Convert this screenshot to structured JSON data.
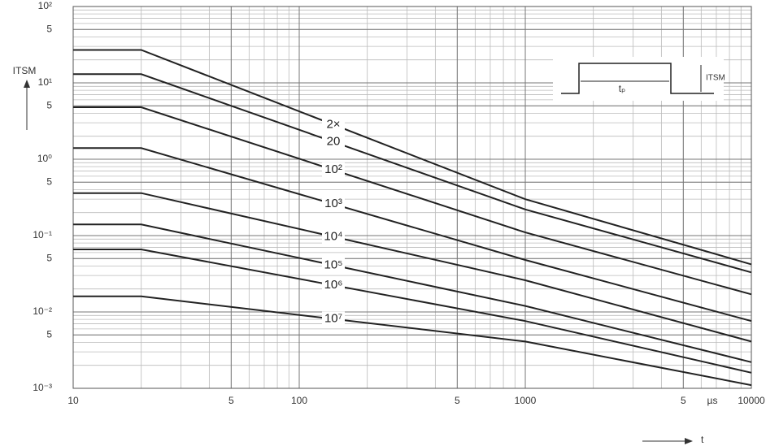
{
  "chart_data": {
    "type": "line",
    "y_label": "ITSM",
    "x_label": "t",
    "x_unit": "µs",
    "inset_labels": [
      "tₚ",
      "ITSM"
    ],
    "log_x": true,
    "log_y": true,
    "grid": true,
    "minor_grid": true,
    "xlim": [
      10,
      10000
    ],
    "xticks": [
      10,
      {
        "value": 50,
        "label": "5"
      },
      100,
      {
        "value": 500,
        "label": "5"
      },
      1000,
      {
        "value": 5000,
        "label": "5"
      },
      10000
    ],
    "ylim": [
      0.001,
      100
    ],
    "yticks": [
      {
        "value": 100,
        "label": "10²"
      },
      {
        "value": 50,
        "label": "5"
      },
      {
        "value": 10,
        "label": "10¹"
      },
      {
        "value": 5,
        "label": "5"
      },
      {
        "value": 1,
        "label": "10⁰"
      },
      {
        "value": 0.5,
        "label": "5"
      },
      {
        "value": 0.1,
        "label": "10⁻¹"
      },
      {
        "value": 0.05,
        "label": "5"
      },
      {
        "value": 0.01,
        "label": "10⁻²"
      },
      {
        "value": 0.005,
        "label": "5"
      },
      {
        "value": 0.001,
        "label": "10⁻³"
      }
    ],
    "x": [
      10,
      20,
      1000,
      10000
    ],
    "series": [
      {
        "name": "2×",
        "color": "#222222",
        "values": [
          27,
          27,
          0.3,
          0.042
        ]
      },
      {
        "name": "20",
        "color": "#222222",
        "values": [
          13,
          13,
          0.22,
          0.033
        ]
      },
      {
        "name": "10²",
        "color": "#222222",
        "values": [
          4.8,
          4.8,
          0.11,
          0.017
        ]
      },
      {
        "name": "10³",
        "color": "#222222",
        "values": [
          1.4,
          1.4,
          0.048,
          0.0076
        ]
      },
      {
        "name": "10⁴",
        "color": "#222222",
        "values": [
          0.36,
          0.36,
          0.026,
          0.0041
        ]
      },
      {
        "name": "10⁵",
        "color": "#222222",
        "values": [
          0.14,
          0.14,
          0.012,
          0.0022
        ]
      },
      {
        "name": "10⁶",
        "color": "#222222",
        "values": [
          0.066,
          0.066,
          0.0076,
          0.0016
        ]
      },
      {
        "name": "10⁷",
        "color": "#222222",
        "values": [
          0.016,
          0.016,
          0.0041,
          0.0011
        ]
      }
    ]
  }
}
